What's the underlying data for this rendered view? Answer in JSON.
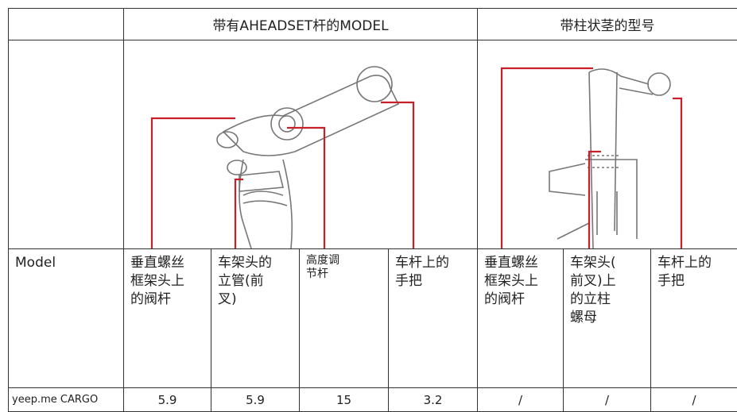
{
  "table": {
    "header": [
      "带有AHEADSET杆的MODEL",
      "带柱状茎的型号"
    ],
    "label_row": {
      "first": "Model",
      "cells": [
        [
          "垂直螺丝",
          "框架头上",
          "的阀杆"
        ],
        [
          "车架头的",
          "立管(前",
          "叉)"
        ],
        [
          "高度调",
          "节杆"
        ],
        [
          "车杆上的",
          "手把"
        ],
        [
          "垂直螺丝",
          "框架头上",
          "的阀杆"
        ],
        [
          "车架头(",
          "前叉)上",
          "的立柱",
          "螺母"
        ],
        [
          "车杆上的",
          "手把"
        ]
      ]
    },
    "rows": [
      [
        "yeep.me CARGO",
        "5.9",
        "5.9",
        "15",
        "3.2",
        "/",
        "/",
        "/"
      ]
    ]
  }
}
